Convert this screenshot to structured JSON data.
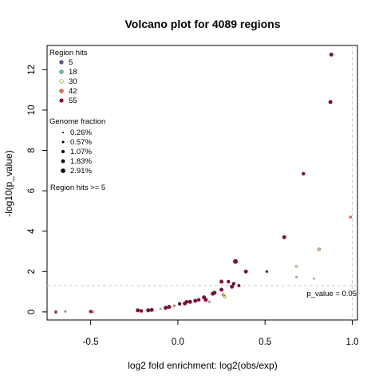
{
  "chart_data": {
    "type": "scatter",
    "title": "Volcano plot for 4089 regions",
    "xlabel": "log2 fold enrichment: log2(obs/exp)",
    "ylabel": "-log10(p_value)",
    "xlim": [
      -0.75,
      1.03
    ],
    "ylim": [
      -0.4,
      13.2
    ],
    "xticks": [
      -0.5,
      0.0,
      0.5,
      1.0
    ],
    "xtick_labels": [
      "-0.5",
      "0.0",
      "0.5",
      "1.0"
    ],
    "yticks": [
      0,
      2,
      4,
      6,
      8,
      10,
      12
    ],
    "ytick_labels": [
      "0",
      "2",
      "4",
      "6",
      "8",
      "10",
      "12"
    ],
    "threshold_line": {
      "y": 1.301,
      "label": "p_value = 0.05"
    },
    "vertical_line": {
      "x": 1.0
    },
    "grid": false,
    "legend_hits": {
      "title": "Region hits",
      "entries": [
        {
          "label": "5",
          "color": "#5e4fa2"
        },
        {
          "label": "18",
          "color": "#66c2a5"
        },
        {
          "label": "30",
          "color": "#ffffbf"
        },
        {
          "label": "42",
          "color": "#f46d43"
        },
        {
          "label": "55",
          "color": "#9e0142"
        }
      ]
    },
    "legend_fraction": {
      "title": "Genome fraction",
      "entries": [
        {
          "label": "0.26%",
          "size": 1.0
        },
        {
          "label": "0.57%",
          "size": 1.5
        },
        {
          "label": "1.07%",
          "size": 2.0
        },
        {
          "label": "1.83%",
          "size": 2.4
        },
        {
          "label": "2.91%",
          "size": 2.8
        }
      ]
    },
    "filter_note": "Region hits >= 5",
    "points": [
      {
        "x": 0.88,
        "y": 12.75,
        "c": "#9e0142",
        "s": 2.3
      },
      {
        "x": 0.875,
        "y": 10.4,
        "c": "#9e0142",
        "s": 2.3
      },
      {
        "x": 0.72,
        "y": 6.85,
        "c": "#9e0142",
        "s": 2.0
      },
      {
        "x": 0.99,
        "y": 4.7,
        "c": "#f46d43",
        "s": 1.5
      },
      {
        "x": 0.61,
        "y": 3.7,
        "c": "#9e0142",
        "s": 2.3
      },
      {
        "x": 0.81,
        "y": 3.1,
        "c": "#fdae61",
        "s": 1.8
      },
      {
        "x": 0.33,
        "y": 2.5,
        "c": "#9e0142",
        "s": 2.8
      },
      {
        "x": 0.68,
        "y": 2.25,
        "c": "#fee08b",
        "s": 1.5
      },
      {
        "x": 0.39,
        "y": 2.0,
        "c": "#9e0142",
        "s": 2.3
      },
      {
        "x": 0.51,
        "y": 2.0,
        "c": "#9e0142",
        "s": 1.5
      },
      {
        "x": 0.68,
        "y": 1.72,
        "c": "#abdda4",
        "s": 1.2
      },
      {
        "x": 0.78,
        "y": 1.65,
        "c": "#abdda4",
        "s": 1.0
      },
      {
        "x": 0.25,
        "y": 1.5,
        "c": "#9e0142",
        "s": 2.3
      },
      {
        "x": 0.29,
        "y": 1.5,
        "c": "#9e0142",
        "s": 2.0
      },
      {
        "x": 0.32,
        "y": 1.4,
        "c": "#9e0142",
        "s": 2.0
      },
      {
        "x": 0.35,
        "y": 1.3,
        "c": "#9e0142",
        "s": 1.8
      },
      {
        "x": 0.31,
        "y": 1.25,
        "c": "#9e0142",
        "s": 2.3
      },
      {
        "x": 0.25,
        "y": 1.1,
        "c": "#9e0142",
        "s": 2.3
      },
      {
        "x": 0.21,
        "y": 0.95,
        "c": "#9e0142",
        "s": 2.3
      },
      {
        "x": 0.2,
        "y": 0.9,
        "c": "#9e0142",
        "s": 2.3
      },
      {
        "x": 0.26,
        "y": 0.85,
        "c": "#fdae61",
        "s": 1.8
      },
      {
        "x": 0.27,
        "y": 0.75,
        "c": "#fee08b",
        "s": 1.5
      },
      {
        "x": 0.15,
        "y": 0.72,
        "c": "#9e0142",
        "s": 2.3
      },
      {
        "x": 0.16,
        "y": 0.6,
        "c": "#9e0142",
        "s": 2.3
      },
      {
        "x": 0.18,
        "y": 0.5,
        "c": "#abdda4",
        "s": 1.5
      },
      {
        "x": 0.12,
        "y": 0.6,
        "c": "#9e0142",
        "s": 2.0
      },
      {
        "x": 0.1,
        "y": 0.55,
        "c": "#9e0142",
        "s": 2.3
      },
      {
        "x": 0.07,
        "y": 0.5,
        "c": "#9e0142",
        "s": 2.3
      },
      {
        "x": 0.05,
        "y": 0.5,
        "c": "#9e0142",
        "s": 2.0
      },
      {
        "x": 0.04,
        "y": 0.42,
        "c": "#9e0142",
        "s": 2.3
      },
      {
        "x": 0.01,
        "y": 0.4,
        "c": "#9e0142",
        "s": 2.0
      },
      {
        "x": -0.02,
        "y": 0.3,
        "c": "#fdae61",
        "s": 1.5
      },
      {
        "x": -0.05,
        "y": 0.25,
        "c": "#9e0142",
        "s": 2.3
      },
      {
        "x": -0.07,
        "y": 0.2,
        "c": "#9e0142",
        "s": 2.3
      },
      {
        "x": -0.1,
        "y": 0.15,
        "c": "#abdda4",
        "s": 1.2
      },
      {
        "x": -0.15,
        "y": 0.1,
        "c": "#9e0142",
        "s": 2.3
      },
      {
        "x": -0.17,
        "y": 0.08,
        "c": "#9e0142",
        "s": 2.3
      },
      {
        "x": -0.21,
        "y": 0.05,
        "c": "#9e0142",
        "s": 2.0
      },
      {
        "x": -0.23,
        "y": 0.08,
        "c": "#9e0142",
        "s": 2.3
      },
      {
        "x": -0.5,
        "y": 0.02,
        "c": "#9e0142",
        "s": 1.8
      },
      {
        "x": -0.49,
        "y": 0.0,
        "c": "#f46d43",
        "s": 1.5
      },
      {
        "x": -0.645,
        "y": 0.02,
        "c": "#66c2a5",
        "s": 1.2
      },
      {
        "x": -0.7,
        "y": 0.02,
        "c": "#f46d43",
        "s": 1.5
      },
      {
        "x": -0.7,
        "y": -0.03,
        "c": "#9e0142",
        "s": 1.2
      }
    ]
  }
}
